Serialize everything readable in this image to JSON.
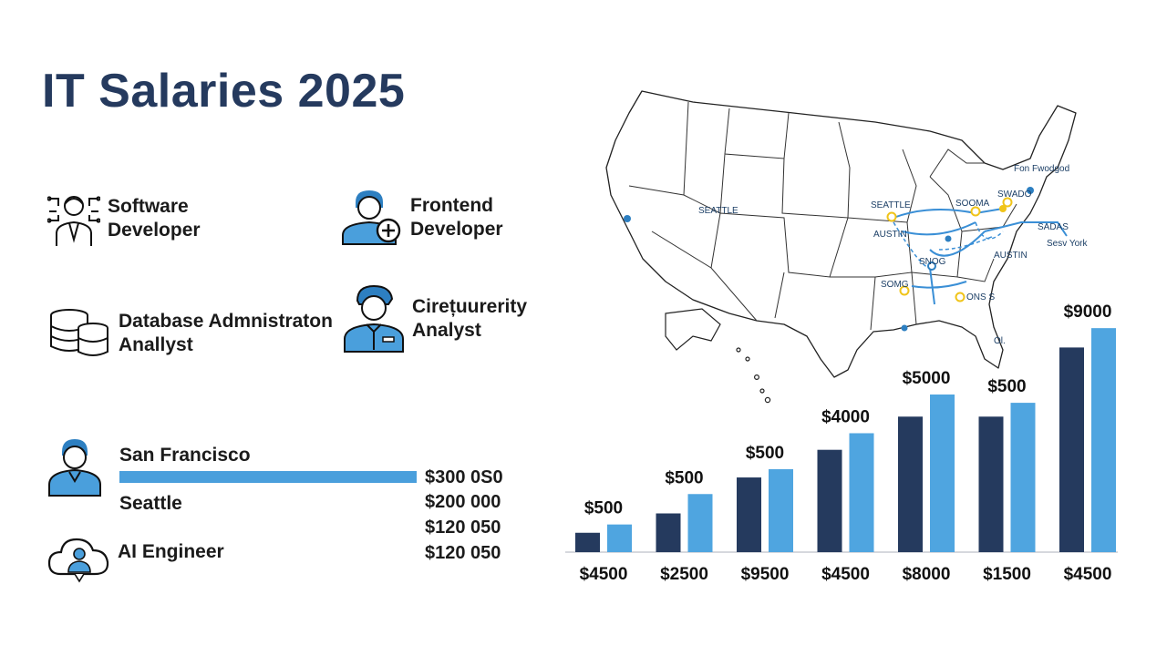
{
  "title": "IT Salaries 2025",
  "roles": [
    {
      "line1": "Software",
      "line2": "Developer",
      "icon": "developer-icon"
    },
    {
      "line1": "Frontend",
      "line2": "Developer",
      "icon": "frontend-developer-icon"
    },
    {
      "line1": "Database Admnistraton",
      "line2": "Anallyst",
      "icon": "database-icon"
    },
    {
      "line1": "Cirețuurerity",
      "line2": "Analyst",
      "icon": "security-analyst-icon"
    }
  ],
  "cities": [
    {
      "label": "San Francisco",
      "icon": "person-icon"
    },
    {
      "label": "Seattle"
    },
    {
      "label": "AI Engineer",
      "icon": "cloud-user-icon"
    }
  ],
  "salaries": [
    "$300 0S0",
    "$200 000",
    "$120 050",
    "$120 050"
  ],
  "map": {
    "labels": [
      "SEATTLE",
      "SEATTLE",
      "AUSTIN",
      "SOOMA",
      "SWADO",
      "Fon Fwodgod",
      "SADAS",
      "Sesv York",
      "AUSTIN",
      "SNOG",
      "SOMG",
      "ONS S",
      "Ol."
    ],
    "colors": {
      "route": "#3a8fd6",
      "node": "#f0c419"
    }
  },
  "chart_data": {
    "type": "bar",
    "categories": [
      "$4500",
      "$2500",
      "$9500",
      "$4500",
      "$8000",
      "$1500",
      "$4500"
    ],
    "series": [
      {
        "values": [
          700,
          1400,
          2700,
          3700,
          4900,
          4900,
          7400
        ],
        "color": "#253a5e"
      },
      {
        "values": [
          1000,
          2100,
          3000,
          4300,
          5700,
          5400,
          8100
        ],
        "color": "#4fa5e0"
      }
    ],
    "data_labels": [
      "$500",
      "$500",
      "$500",
      "$4000",
      "$5000",
      "$500",
      "$9000"
    ],
    "ylim": [
      0,
      8500
    ],
    "grid": false,
    "legend": "none"
  }
}
